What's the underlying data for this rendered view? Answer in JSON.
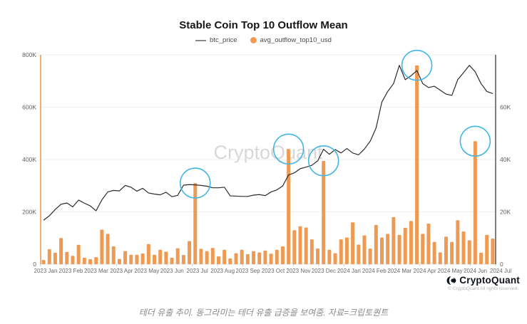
{
  "title": "Stable Coin Top 10 Outflow Mean",
  "watermark": "CryptoQuant",
  "caption": "테더 유출 추이. 동그라미는 테더 유출 급증을 보여줌. 자료=크립토퀀트",
  "footer": {
    "brand": "CryptoQuant",
    "copyright": "© CryptoQuant All rights reserved."
  },
  "colors": {
    "bar": "#EE9A53",
    "line": "#2b2b2b",
    "highlight": "#41b6e6",
    "left_axis": "#EE9A53",
    "right_axis": "#3a3a3a",
    "grid": "#efefef",
    "tick_text": "#5f5f5f",
    "watermark": "#d8d8d8"
  },
  "chart_data": {
    "type": "bar",
    "subtype": "dual-axis bar+line, weekly points",
    "title": "Stable Coin Top 10 Outflow Mean",
    "x_labels": [
      "2023 Jan",
      "2023 Feb",
      "2023 Mar",
      "2023 Apr",
      "2023 May",
      "2023 Jun",
      "2023 Jul",
      "2023 Aug",
      "2023 Sep",
      "2023 Oct",
      "2023 Nov",
      "2023 Dec",
      "2024 Jan",
      "2024 Feb",
      "2024 Mar",
      "2024 Apr",
      "2024 May",
      "2024 Jun",
      "2024 Jul"
    ],
    "left_axis": {
      "max": 800000,
      "ticks": [
        {
          "label": "0",
          "value": 0
        },
        {
          "label": "200K",
          "value": 200000
        },
        {
          "label": "400K",
          "value": 400000
        },
        {
          "label": "600K",
          "value": 600000
        },
        {
          "label": "800K",
          "value": 800000
        }
      ]
    },
    "right_axis": {
      "max": 80000,
      "ticks": [
        {
          "label": "0",
          "value": 0
        },
        {
          "label": "20K",
          "value": 20000
        },
        {
          "label": "40K",
          "value": 40000
        },
        {
          "label": "60K",
          "value": 60000
        }
      ]
    },
    "series": [
      {
        "name": "avg_outflow_top10_usd",
        "type": "bar",
        "axis": "left",
        "color": "#EE9A53",
        "values": [
          16000,
          57000,
          44000,
          100000,
          47000,
          32000,
          74000,
          25000,
          19000,
          27000,
          132000,
          116000,
          68000,
          20000,
          50000,
          36000,
          36000,
          41000,
          77000,
          36000,
          55000,
          48000,
          25000,
          61000,
          35000,
          88000,
          310000,
          59000,
          50000,
          62000,
          30000,
          55000,
          22000,
          42000,
          55000,
          38000,
          50000,
          45000,
          52000,
          40000,
          55000,
          68000,
          440000,
          130000,
          145000,
          140000,
          95000,
          60000,
          395000,
          55000,
          42000,
          95000,
          102000,
          160000,
          75000,
          110000,
          60000,
          150000,
          102000,
          116000,
          180000,
          112000,
          139000,
          165000,
          760000,
          116000,
          155000,
          85000,
          45000,
          105000,
          85000,
          168000,
          125000,
          91000,
          470000,
          44000,
          112000,
          98000
        ]
      },
      {
        "name": "btc_price",
        "type": "line",
        "axis": "right",
        "color": "#2b2b2b",
        "values": [
          16800,
          18500,
          20900,
          22900,
          23400,
          21900,
          24500,
          23300,
          22300,
          20400,
          24600,
          27600,
          28200,
          28000,
          30100,
          29400,
          27900,
          29000,
          27200,
          26800,
          26500,
          27500,
          25800,
          26300,
          30200,
          30400,
          30300,
          30100,
          29800,
          29200,
          29200,
          29400,
          26100,
          26000,
          25900,
          25900,
          26400,
          26600,
          26200,
          27600,
          28400,
          29900,
          34100,
          34900,
          36500,
          37100,
          37800,
          39500,
          43900,
          42000,
          43800,
          42500,
          44200,
          42500,
          41800,
          44000,
          47000,
          52000,
          62000,
          66000,
          69000,
          76000,
          70500,
          72000,
          74000,
          69000,
          67500,
          68000,
          66500,
          65000,
          64500,
          70500,
          73200,
          76000,
          73500,
          69000,
          66000,
          65200
        ]
      }
    ],
    "highlight_circles": {
      "color": "#41b6e6",
      "indices": [
        26,
        42,
        48,
        64,
        74
      ],
      "meaning": "outflow spike weeks"
    },
    "grid": true,
    "legend_position": "top"
  }
}
